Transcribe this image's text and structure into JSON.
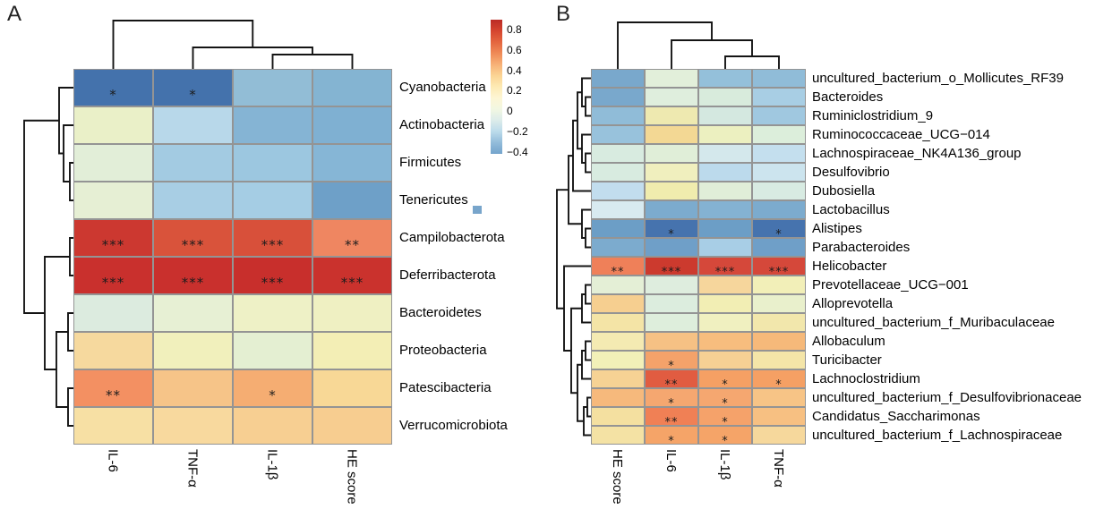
{
  "chart_data": [
    {
      "panel_letter": "A",
      "type": "heatmap",
      "columns": [
        "IL-6",
        "TNF-α",
        "IL-1β",
        "HE score"
      ],
      "rows": [
        {
          "label": "Cyanobacteria",
          "colors": [
            "#4472ac",
            "#4472ac",
            "#92bdd6",
            "#84b4d2"
          ],
          "marks": [
            "*",
            "*",
            "",
            ""
          ],
          "values_est": [
            -0.45,
            -0.45,
            -0.2,
            -0.25
          ]
        },
        {
          "label": "Actinobacteria",
          "colors": [
            "#eaf0c8",
            "#b8d8ea",
            "#85b4d4",
            "#7fb0d2"
          ],
          "marks": [
            "",
            "",
            "",
            ""
          ],
          "values_est": [
            0.1,
            -0.12,
            -0.25,
            -0.27
          ]
        },
        {
          "label": "Firmicutes",
          "colors": [
            "#e2eed8",
            "#a3cbe2",
            "#9cc7e0",
            "#86b6d6"
          ],
          "marks": [
            "",
            "",
            "",
            ""
          ],
          "values_est": [
            0.06,
            -0.17,
            -0.15,
            -0.25
          ]
        },
        {
          "label": "Tenericutes",
          "colors": [
            "#e6efd4",
            "#a8cee4",
            "#a5cde4",
            "#6ea0c8"
          ],
          "marks": [
            "",
            "",
            "",
            ""
          ],
          "values_est": [
            0.07,
            -0.15,
            -0.14,
            -0.32
          ]
        },
        {
          "label": "Campilobacterota",
          "colors": [
            "#cc3830",
            "#d9533b",
            "#d8503a",
            "#ef8661"
          ],
          "marks": [
            "***",
            "***",
            "***",
            "**"
          ],
          "values_est": [
            0.82,
            0.76,
            0.77,
            0.55
          ]
        },
        {
          "label": "Deferribacterota",
          "colors": [
            "#c9302d",
            "#c9302d",
            "#c82f2c",
            "#ca322d"
          ],
          "marks": [
            "***",
            "***",
            "***",
            "***"
          ],
          "values_est": [
            0.86,
            0.86,
            0.87,
            0.85
          ]
        },
        {
          "label": "Bacteroidetes",
          "colors": [
            "#dcebdf",
            "#e7f0d4",
            "#eef1c6",
            "#eff0c2"
          ],
          "marks": [
            "",
            "",
            "",
            ""
          ],
          "values_est": [
            -0.02,
            0.06,
            0.12,
            0.13
          ]
        },
        {
          "label": "Proteobacteria",
          "colors": [
            "#f6d99e",
            "#f1f0bc",
            "#e4efd2",
            "#f3eeb5"
          ],
          "marks": [
            "",
            "",
            "",
            ""
          ],
          "values_est": [
            0.3,
            0.14,
            0.05,
            0.16
          ]
        },
        {
          "label": "Patescibacteria",
          "colors": [
            "#f39062",
            "#f6c488",
            "#f5ad72",
            "#f8d896"
          ],
          "marks": [
            "**",
            "",
            "*",
            ""
          ],
          "values_est": [
            0.53,
            0.35,
            0.45,
            0.3
          ]
        },
        {
          "label": "Verrucomicrobiota",
          "colors": [
            "#f7e0a4",
            "#f8d99e",
            "#f7cf92",
            "#f7cd90"
          ],
          "marks": [
            "",
            "",
            "",
            ""
          ],
          "values_est": [
            0.26,
            0.29,
            0.34,
            0.35
          ]
        }
      ],
      "row_dendrogram": {
        "merges": [
          [
            "L2",
            "L3",
            4
          ],
          [
            "L1",
            "N0",
            11
          ],
          [
            "L0",
            "N1",
            16
          ],
          [
            "L4",
            "L5",
            4
          ],
          [
            "L6",
            "L7",
            6
          ],
          [
            "L8",
            "L9",
            6
          ],
          [
            "N4",
            "N5",
            19
          ],
          [
            "N3",
            "N6",
            32
          ],
          [
            "N2",
            "N7",
            55
          ]
        ]
      },
      "col_dendrogram": {
        "merges": [
          [
            "L2",
            "L3",
            16
          ],
          [
            "L1",
            "N0",
            24
          ],
          [
            "L0",
            "N1",
            54
          ]
        ]
      }
    },
    {
      "panel_letter": "B",
      "type": "heatmap",
      "columns": [
        "HE score",
        "IL-6",
        "IL-1β",
        "TNF-α"
      ],
      "rows": [
        {
          "label": "uncultured_bacterium_o_Mollicutes_RF39",
          "colors": [
            "#79a8cc",
            "#e2efda",
            "#94c0da",
            "#90bcd8"
          ],
          "marks": [
            "",
            "",
            "",
            ""
          ],
          "values_est": [
            -0.28,
            0.05,
            -0.2,
            -0.21
          ]
        },
        {
          "label": "Bacteroides",
          "colors": [
            "#79a8cc",
            "#dfeedd",
            "#d8ebdc",
            "#a8cee4"
          ],
          "marks": [
            "",
            "",
            "",
            ""
          ],
          "values_est": [
            -0.28,
            0.05,
            0.02,
            -0.14
          ]
        },
        {
          "label": "Ruminiclostridium_9",
          "colors": [
            "#90bcd8",
            "#eee9b0",
            "#d4e8e0",
            "#a0c8e0"
          ],
          "marks": [
            "",
            "",
            "",
            ""
          ],
          "values_est": [
            -0.21,
            0.18,
            0.0,
            -0.17
          ]
        },
        {
          "label": "Ruminococcaceae_UCG−014",
          "colors": [
            "#98c2dc",
            "#f3d894",
            "#ecf0c0",
            "#dceedb"
          ],
          "marks": [
            "",
            "",
            "",
            ""
          ],
          "values_est": [
            -0.19,
            0.33,
            0.12,
            0.04
          ]
        },
        {
          "label": "Lachnospiraceae_NK4A136_group",
          "colors": [
            "#d8ebe0",
            "#e0eed8",
            "#d4e8ec",
            "#c4dfee"
          ],
          "marks": [
            "",
            "",
            "",
            ""
          ],
          "values_est": [
            0.0,
            0.04,
            -0.05,
            -0.1
          ]
        },
        {
          "label": "Desulfovibrio",
          "colors": [
            "#d8ebe0",
            "#f0efbe",
            "#bcdaec",
            "#cce4ee"
          ],
          "marks": [
            "",
            "",
            "",
            ""
          ],
          "values_est": [
            0.0,
            0.15,
            -0.13,
            -0.08
          ]
        },
        {
          "label": "Dubosiella",
          "colors": [
            "#c2ddee",
            "#f0ecae",
            "#e0eed8",
            "#d8ebe2"
          ],
          "marks": [
            "",
            "",
            "",
            ""
          ],
          "values_est": [
            -0.1,
            0.19,
            0.04,
            0.01
          ]
        },
        {
          "label": "Lactobacillus",
          "colors": [
            "#d8eaf0",
            "#7cabce",
            "#84b2d2",
            "#7cabce"
          ],
          "marks": [
            "",
            "",
            "",
            ""
          ],
          "values_est": [
            -0.04,
            -0.27,
            -0.24,
            -0.27
          ]
        },
        {
          "label": "Alistipes",
          "colors": [
            "#6c9ec6",
            "#4673ae",
            "#6c9ec6",
            "#4673ae"
          ],
          "marks": [
            "",
            "*",
            "",
            "*"
          ],
          "values_est": [
            -0.33,
            -0.44,
            -0.33,
            -0.44
          ]
        },
        {
          "label": "Parabacteroides",
          "colors": [
            "#7cabce",
            "#6f9fc8",
            "#a8cee6",
            "#6f9fc8"
          ],
          "marks": [
            "",
            "",
            "",
            ""
          ],
          "values_est": [
            -0.27,
            -0.31,
            -0.15,
            -0.31
          ]
        },
        {
          "label": "Helicobacter",
          "colors": [
            "#ef8059",
            "#cc3a2e",
            "#d5483a",
            "#d5483a"
          ],
          "marks": [
            "**",
            "***",
            "***",
            "***"
          ],
          "values_est": [
            0.57,
            0.82,
            0.76,
            0.76
          ]
        },
        {
          "label": "Prevotellaceae_UCG−001",
          "colors": [
            "#e4efd6",
            "#deedde",
            "#f6d69c",
            "#f2efb8"
          ],
          "marks": [
            "",
            "",
            "",
            ""
          ],
          "values_est": [
            0.05,
            0.02,
            0.32,
            0.16
          ]
        },
        {
          "label": "Alloprevotella",
          "colors": [
            "#f6cf90",
            "#dcedde",
            "#f2eeb4",
            "#e9f0cc"
          ],
          "marks": [
            "",
            "",
            "",
            ""
          ],
          "values_est": [
            0.34,
            0.02,
            0.16,
            0.1
          ]
        },
        {
          "label": "uncultured_bacterium_f_Muribaculaceae",
          "colors": [
            "#f4e4a6",
            "#deeedc",
            "#f0f0c0",
            "#f2e7ac"
          ],
          "marks": [
            "",
            "",
            "",
            ""
          ],
          "values_est": [
            0.25,
            0.03,
            0.13,
            0.23
          ]
        },
        {
          "label": "Allobaculum",
          "colors": [
            "#f4eab2",
            "#f6c184",
            "#f7bd7e",
            "#f6b97a"
          ],
          "marks": [
            "",
            "",
            "",
            ""
          ],
          "values_est": [
            0.2,
            0.37,
            0.4,
            0.41
          ]
        },
        {
          "label": "Turicibacter",
          "colors": [
            "#f2f0b8",
            "#f4a26a",
            "#f6d094",
            "#f4e5a8"
          ],
          "marks": [
            "",
            "*",
            "",
            ""
          ],
          "values_est": [
            0.15,
            0.48,
            0.31,
            0.24
          ]
        },
        {
          "label": "Lachnoclostridium",
          "colors": [
            "#f6d294",
            "#e15c41",
            "#f5a064",
            "#f5a064"
          ],
          "marks": [
            "",
            "**",
            "*",
            "*"
          ],
          "values_est": [
            0.32,
            0.68,
            0.49,
            0.49
          ]
        },
        {
          "label": "uncultured_bacterium_f_Desulfovibrionaceae",
          "colors": [
            "#f6b97c",
            "#f5a770",
            "#f5a770",
            "#f7c486"
          ],
          "marks": [
            "",
            "*",
            "*",
            ""
          ],
          "values_est": [
            0.41,
            0.46,
            0.46,
            0.36
          ]
        },
        {
          "label": "Candidatus_Saccharimonas",
          "colors": [
            "#f4e0a0",
            "#f08055",
            "#f5a26a",
            "#f7c082"
          ],
          "marks": [
            "",
            "**",
            "*",
            ""
          ],
          "values_est": [
            0.26,
            0.56,
            0.48,
            0.38
          ]
        },
        {
          "label": "uncultured_bacterium_f_Lachnospiraceae",
          "colors": [
            "#f4e2a4",
            "#f5a468",
            "#f5a468",
            "#f6d89c"
          ],
          "marks": [
            "",
            "*",
            "*",
            ""
          ],
          "values_est": [
            0.25,
            0.47,
            0.47,
            0.31
          ]
        }
      ],
      "row_dendrogram": {
        "merges": [
          [
            "L1",
            "L2",
            6
          ],
          [
            "L0",
            "N0",
            10
          ],
          [
            "L4",
            "L5",
            6
          ],
          [
            "L3",
            "N2",
            10
          ],
          [
            "N1",
            "N3",
            15
          ],
          [
            "N4",
            "L6",
            20
          ],
          [
            "L8",
            "L9",
            6
          ],
          [
            "L7",
            "N6",
            10
          ],
          [
            "N5",
            "N7",
            25
          ],
          [
            "L11",
            "L12",
            6
          ],
          [
            "N9",
            "L13",
            10
          ],
          [
            "L14",
            "L15",
            6
          ],
          [
            "N11",
            "L16",
            10
          ],
          [
            "L17",
            "L18",
            4
          ],
          [
            "N13",
            "L19",
            8
          ],
          [
            "N12",
            "N14",
            15
          ],
          [
            "N10",
            "N15",
            22
          ],
          [
            "L10",
            "N16",
            30
          ],
          [
            "N8",
            "N17",
            38
          ]
        ]
      },
      "col_dendrogram": {
        "merges": [
          [
            "L2",
            "L3",
            14
          ],
          [
            "L1",
            "N0",
            32
          ],
          [
            "L0",
            "N1",
            52
          ]
        ]
      }
    }
  ],
  "colorbar": {
    "ticks": [
      "0.8",
      "0.6",
      "0.4",
      "0.2",
      "0",
      "−0.2",
      "−0.4"
    ],
    "gradient_top_to_bottom": [
      "#bb2a25",
      "#d5452f",
      "#e4663f",
      "#ef8a57",
      "#f7b177",
      "#fbd494",
      "#fdeab4",
      "#fdf6d4",
      "#f2f7e2",
      "#dcecea",
      "#bcdbeb",
      "#92bcda",
      "#74a4cc"
    ],
    "range_est": [
      0.9,
      -0.5
    ]
  },
  "legend_square": {
    "color": "#78a5cb"
  },
  "significance_key": {
    "single": "*",
    "double": "**",
    "triple": "***"
  }
}
